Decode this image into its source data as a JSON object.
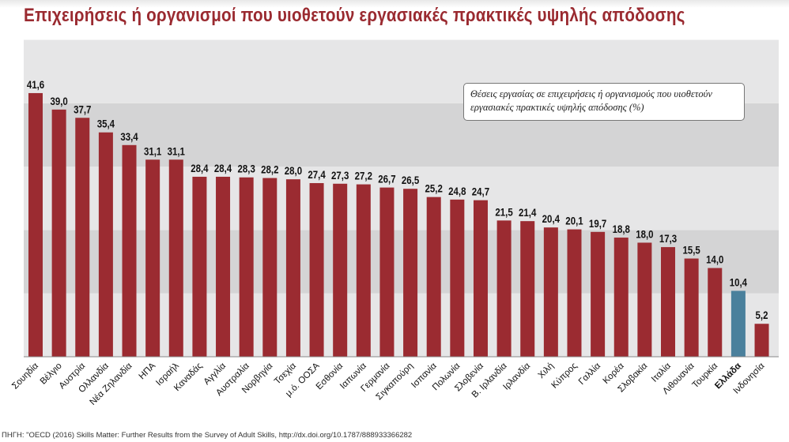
{
  "title": "Επιχειρήσεις ή οργανισμοί που υιοθετούν εργασιακές πρακτικές υψηλής απόδοσης",
  "legend_text": "Θέσεις εργασίας σε επιχειρήσεις ή οργανισμούς που υιοθετούν εργασιακές πρακτικές υψηλής απόδοσης (%)",
  "source": "ΠΗΓΗ: \"OECD (2016) Skills Matter: Further Results from the Survey of Adult Skills, http://dx.doi.org/10.1787/888933366282",
  "colors": {
    "bar": "#9b2b31",
    "highlight": "#4a809c",
    "band_light": "#e6e6e7",
    "band_dark": "#d4d4d5",
    "title": "#9a2a30"
  },
  "chart_data": {
    "type": "bar",
    "ylim": [
      0,
      50
    ],
    "grid": "alternating horizontal bands every 10",
    "legend": "top-right",
    "highlight": "Ελλάδα",
    "categories": [
      "Σουηδία",
      "Βέλγιο",
      "Αυστρία",
      "Ολλανδία",
      "Νέα Ζηλανδία",
      "ΗΠΑ",
      "Ισραήλ",
      "Καναδάς",
      "Αγγλία",
      "Αυστραλία",
      "Νορβηγία",
      "Τσεχία",
      "μ.ό. ΟΟΣΑ",
      "Εσθονία",
      "Ιαπωνία",
      "Γερμανία",
      "Σιγκαπούρη",
      "Ισπανία",
      "Πολωνία",
      "Σλοβενία",
      "Β. Ιρλανδία",
      "Ιρλανδία",
      "Χιλή",
      "Κύπρος",
      "Γαλλία",
      "Κορέα",
      "Σλοβακία",
      "Ιταλία",
      "Λιθουανία",
      "Τουρκία",
      "Ελλάδα",
      "Ινδονησία"
    ],
    "values": [
      41.6,
      39.0,
      37.7,
      35.4,
      33.4,
      31.1,
      31.1,
      28.4,
      28.4,
      28.3,
      28.2,
      28.0,
      27.4,
      27.3,
      27.2,
      26.7,
      26.5,
      25.2,
      24.8,
      24.7,
      21.5,
      21.4,
      20.4,
      20.1,
      19.7,
      18.8,
      18.0,
      17.3,
      15.5,
      14.0,
      10.4,
      5.2
    ],
    "labels": [
      "41,6",
      "39,0",
      "37,7",
      "35,4",
      "33,4",
      "31,1",
      "31,1",
      "28,4",
      "28,4",
      "28,3",
      "28,2",
      "28,0",
      "27,4",
      "27,3",
      "27,2",
      "26,7",
      "26,5",
      "25,2",
      "24,8",
      "24,7",
      "21,5",
      "21,4",
      "20,4",
      "20,1",
      "19,7",
      "18,8",
      "18,0",
      "17,3",
      "15,5",
      "14,0",
      "10,4",
      "5,2"
    ]
  }
}
